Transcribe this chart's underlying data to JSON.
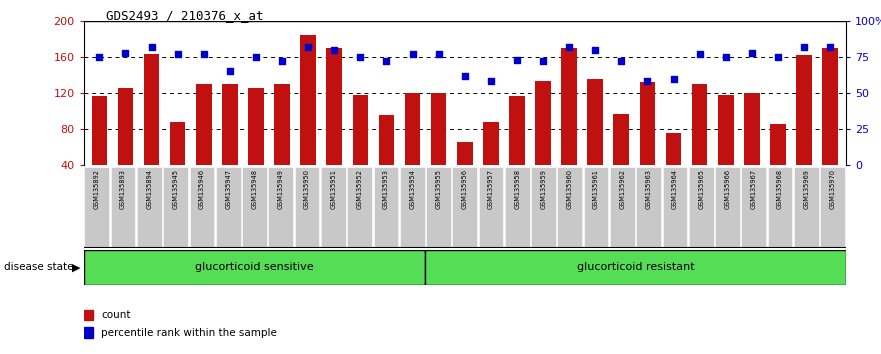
{
  "title": "GDS2493 / 210376_x_at",
  "samples": [
    "GSM135892",
    "GSM135893",
    "GSM135894",
    "GSM135945",
    "GSM135946",
    "GSM135947",
    "GSM135948",
    "GSM135949",
    "GSM135950",
    "GSM135951",
    "GSM135952",
    "GSM135953",
    "GSM135954",
    "GSM135955",
    "GSM135956",
    "GSM135957",
    "GSM135958",
    "GSM135959",
    "GSM135960",
    "GSM135961",
    "GSM135962",
    "GSM135963",
    "GSM135964",
    "GSM135965",
    "GSM135966",
    "GSM135967",
    "GSM135968",
    "GSM135969",
    "GSM135970"
  ],
  "counts": [
    117,
    125,
    163,
    88,
    130,
    130,
    125,
    130,
    185,
    170,
    118,
    95,
    120,
    120,
    65,
    88,
    117,
    133,
    170,
    135,
    97,
    132,
    75,
    130,
    118,
    120,
    85,
    162,
    170
  ],
  "percentiles": [
    75,
    78,
    82,
    77,
    77,
    65,
    75,
    72,
    82,
    80,
    75,
    72,
    77,
    77,
    62,
    58,
    73,
    72,
    82,
    80,
    72,
    58,
    60,
    77,
    75,
    78,
    75,
    82,
    82
  ],
  "group1_count": 13,
  "group1_label": "glucorticoid sensitive",
  "group2_label": "glucorticoid resistant",
  "bar_color": "#C01010",
  "dot_color": "#0000CC",
  "ylim_left": [
    40,
    200
  ],
  "ylim_right": [
    0,
    100
  ],
  "yticks_left": [
    40,
    80,
    120,
    160,
    200
  ],
  "yticks_right": [
    0,
    25,
    50,
    75,
    100
  ],
  "label_bg": "#C8C8C8",
  "group_bg": "#55DD55",
  "group_border": "#000000",
  "bar_color_legend": "#C01010",
  "dot_color_legend": "#0000CC"
}
